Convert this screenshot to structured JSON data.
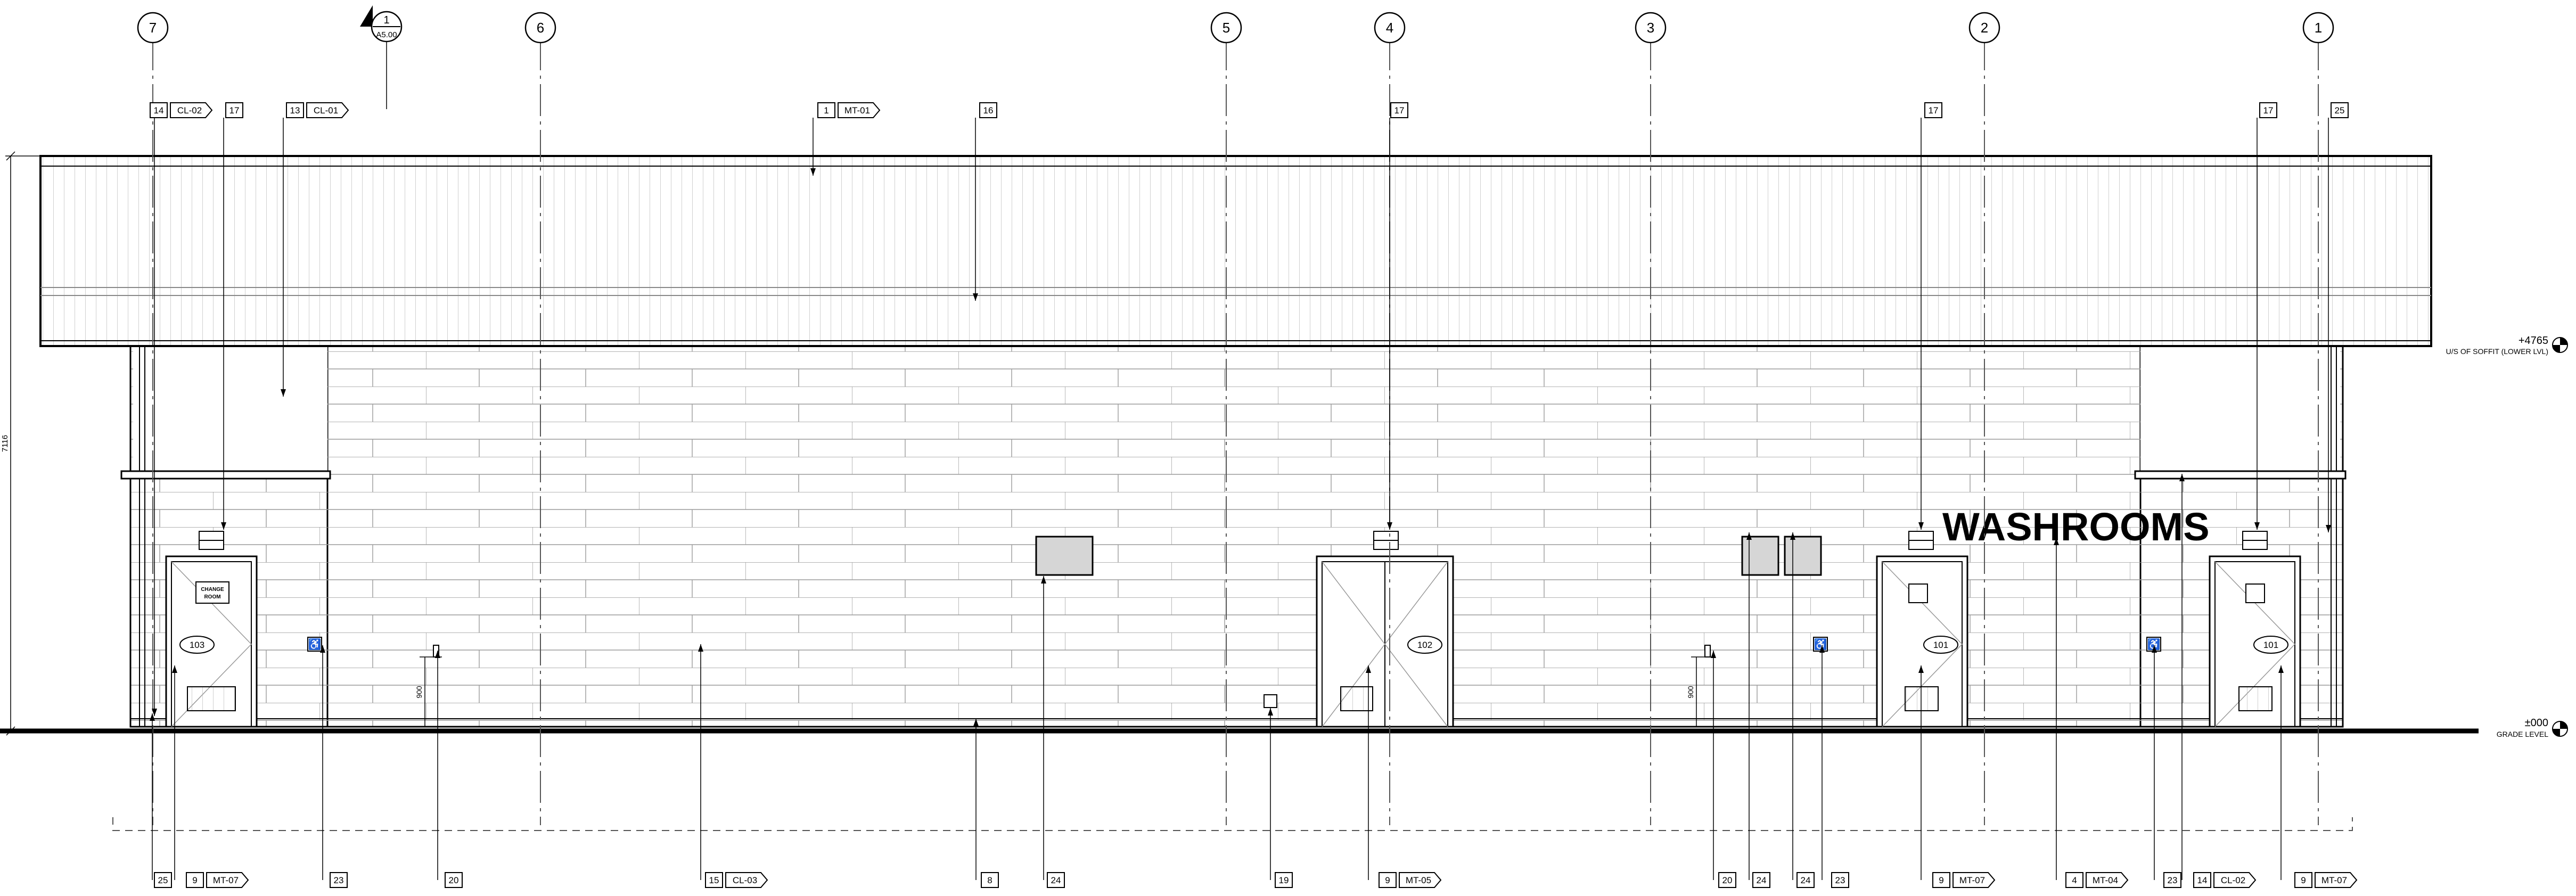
{
  "sheet": {
    "washrooms_sign": "WASHROOMS",
    "change_room_sign_line1": "CHANGE",
    "change_room_sign_line2": "ROOM",
    "overall_height": "7116",
    "dim_left": "900",
    "dim_right": "900"
  },
  "section_marker": {
    "number": "1",
    "sheet": "A5.00"
  },
  "grid_labels": [
    "7",
    "6",
    "5",
    "4",
    "3",
    "2",
    "1"
  ],
  "elevation_levels": [
    {
      "value": "+4765",
      "label": "U/S OF SOFFIT (LOWER LVL)"
    },
    {
      "value": "±000",
      "label": "GRADE LEVEL"
    }
  ],
  "doors": [
    "103",
    "102",
    "101",
    "101"
  ],
  "top_tags": [
    {
      "num": "14",
      "material": "CL-02"
    },
    {
      "num": "17",
      "material": ""
    },
    {
      "num": "13",
      "material": "CL-01"
    },
    {
      "num": "1",
      "material": "MT-01"
    },
    {
      "num": "16",
      "material": ""
    },
    {
      "num": "17",
      "material": ""
    },
    {
      "num": "17",
      "material": ""
    },
    {
      "num": "17",
      "material": ""
    },
    {
      "num": "25",
      "material": ""
    }
  ],
  "bottom_tags": [
    {
      "num": "25",
      "material": ""
    },
    {
      "num": "9",
      "material": "MT-07"
    },
    {
      "num": "23",
      "material": ""
    },
    {
      "num": "20",
      "material": ""
    },
    {
      "num": "15",
      "material": "CL-03"
    },
    {
      "num": "8",
      "material": ""
    },
    {
      "num": "24",
      "material": ""
    },
    {
      "num": "19",
      "material": ""
    },
    {
      "num": "9",
      "material": "MT-05"
    },
    {
      "num": "20",
      "material": ""
    },
    {
      "num": "24",
      "material": ""
    },
    {
      "num": "24",
      "material": ""
    },
    {
      "num": "23",
      "material": ""
    },
    {
      "num": "9",
      "material": "MT-07"
    },
    {
      "num": "4",
      "material": "MT-04"
    },
    {
      "num": "23",
      "material": ""
    },
    {
      "num": "14",
      "material": "CL-02"
    },
    {
      "num": "9",
      "material": "MT-07"
    }
  ]
}
